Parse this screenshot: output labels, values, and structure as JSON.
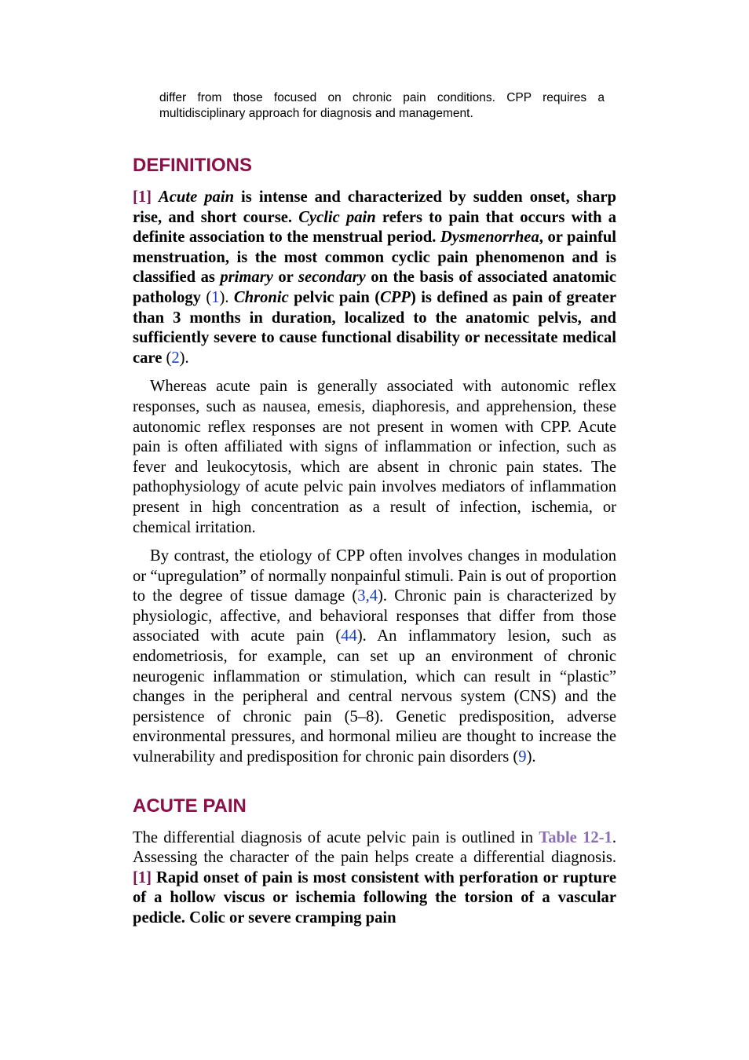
{
  "intro": {
    "text": "differ from those focused on chronic pain conditions. CPP requires a multidisciplinary approach for diagnosis and management."
  },
  "definitions": {
    "heading": "DEFINITIONS",
    "p1": {
      "marker": "[1]",
      "acute_pain": "Acute pain",
      "t1": " is intense and characterized by sudden onset, sharp rise, and short course. ",
      "cyclic_pain": "Cyclic pain",
      "t2": " refers to pain that occurs with a definite association to the menstrual period. ",
      "dysmenorrhea": "Dysmenorrhea",
      "t3": ", or painful menstruation, is the most common cyclic pain phenomenon and is classified as ",
      "primary": "primary",
      "or": " or ",
      "secondary": "secondary",
      "t4": " on the basis of associated anatomic pathology",
      "ref1_open": " (",
      "ref1": "1",
      "ref1_close": "). ",
      "chronic": "Chronic",
      "t5": " pelvic pain (",
      "cpp": "CPP",
      "t6": ") is defined as pain of greater than 3 months in duration, localized to the anatomic pelvis, and sufficiently severe to cause functional disability or necessitate medical care",
      "ref2_open": " (",
      "ref2": "2",
      "ref2_close": ")."
    },
    "p2": "Whereas acute pain is generally associated with autonomic reflex responses, such as nausea, emesis, diaphoresis, and apprehension, these autonomic reflex responses are not present in women with CPP. Acute pain is often affiliated with signs of inflammation or infection, such as fever and leukocytosis, which are absent in chronic pain states. The pathophysiology of acute pelvic pain involves mediators of inflammation present in high concentration as a result of infection, ischemia, or chemical irritation.",
    "p3": {
      "t1": "By contrast, the etiology of CPP often involves changes in modulation or “upregulation” of normally nonpainful stimuli. Pain is out of proportion to the degree of tissue damage (",
      "ref34": "3,4",
      "t2": "). Chronic pain is characterized by physiologic, affective, and behavioral responses that differ from those associated with acute pain (",
      "ref44": "44",
      "t3": "). An inflammatory lesion, such as endometriosis, for example, can set up an environment of chronic neurogenic inflammation or stimulation, which can result in “plastic” changes in the peripheral and central nervous system (CNS) and the persistence of chronic pain (5–8). Genetic predisposition, adverse environmental pressures, and hormonal milieu are thought to increase the vulnerability and predisposition for chronic pain disorders (",
      "ref9": "9",
      "t4": ")."
    }
  },
  "acute_pain": {
    "heading": "ACUTE PAIN",
    "p1": {
      "t1": "The differential diagnosis of acute pelvic pain is outlined in ",
      "table_ref": "Table 12-1",
      "t2": ". Assessing the character of the pain helps create a differential diagnosis. ",
      "marker": "[1]",
      "bold_text": " Rapid onset of pain is most consistent with perforation or rupture of a hollow viscus or ischemia following the torsion of a vascular pedicle. Colic or severe cramping pain"
    }
  },
  "colors": {
    "heading": "#8b1048",
    "marker": "#7a1b55",
    "reference": "#1a3ec8",
    "table_link": "#8a6fb5"
  }
}
